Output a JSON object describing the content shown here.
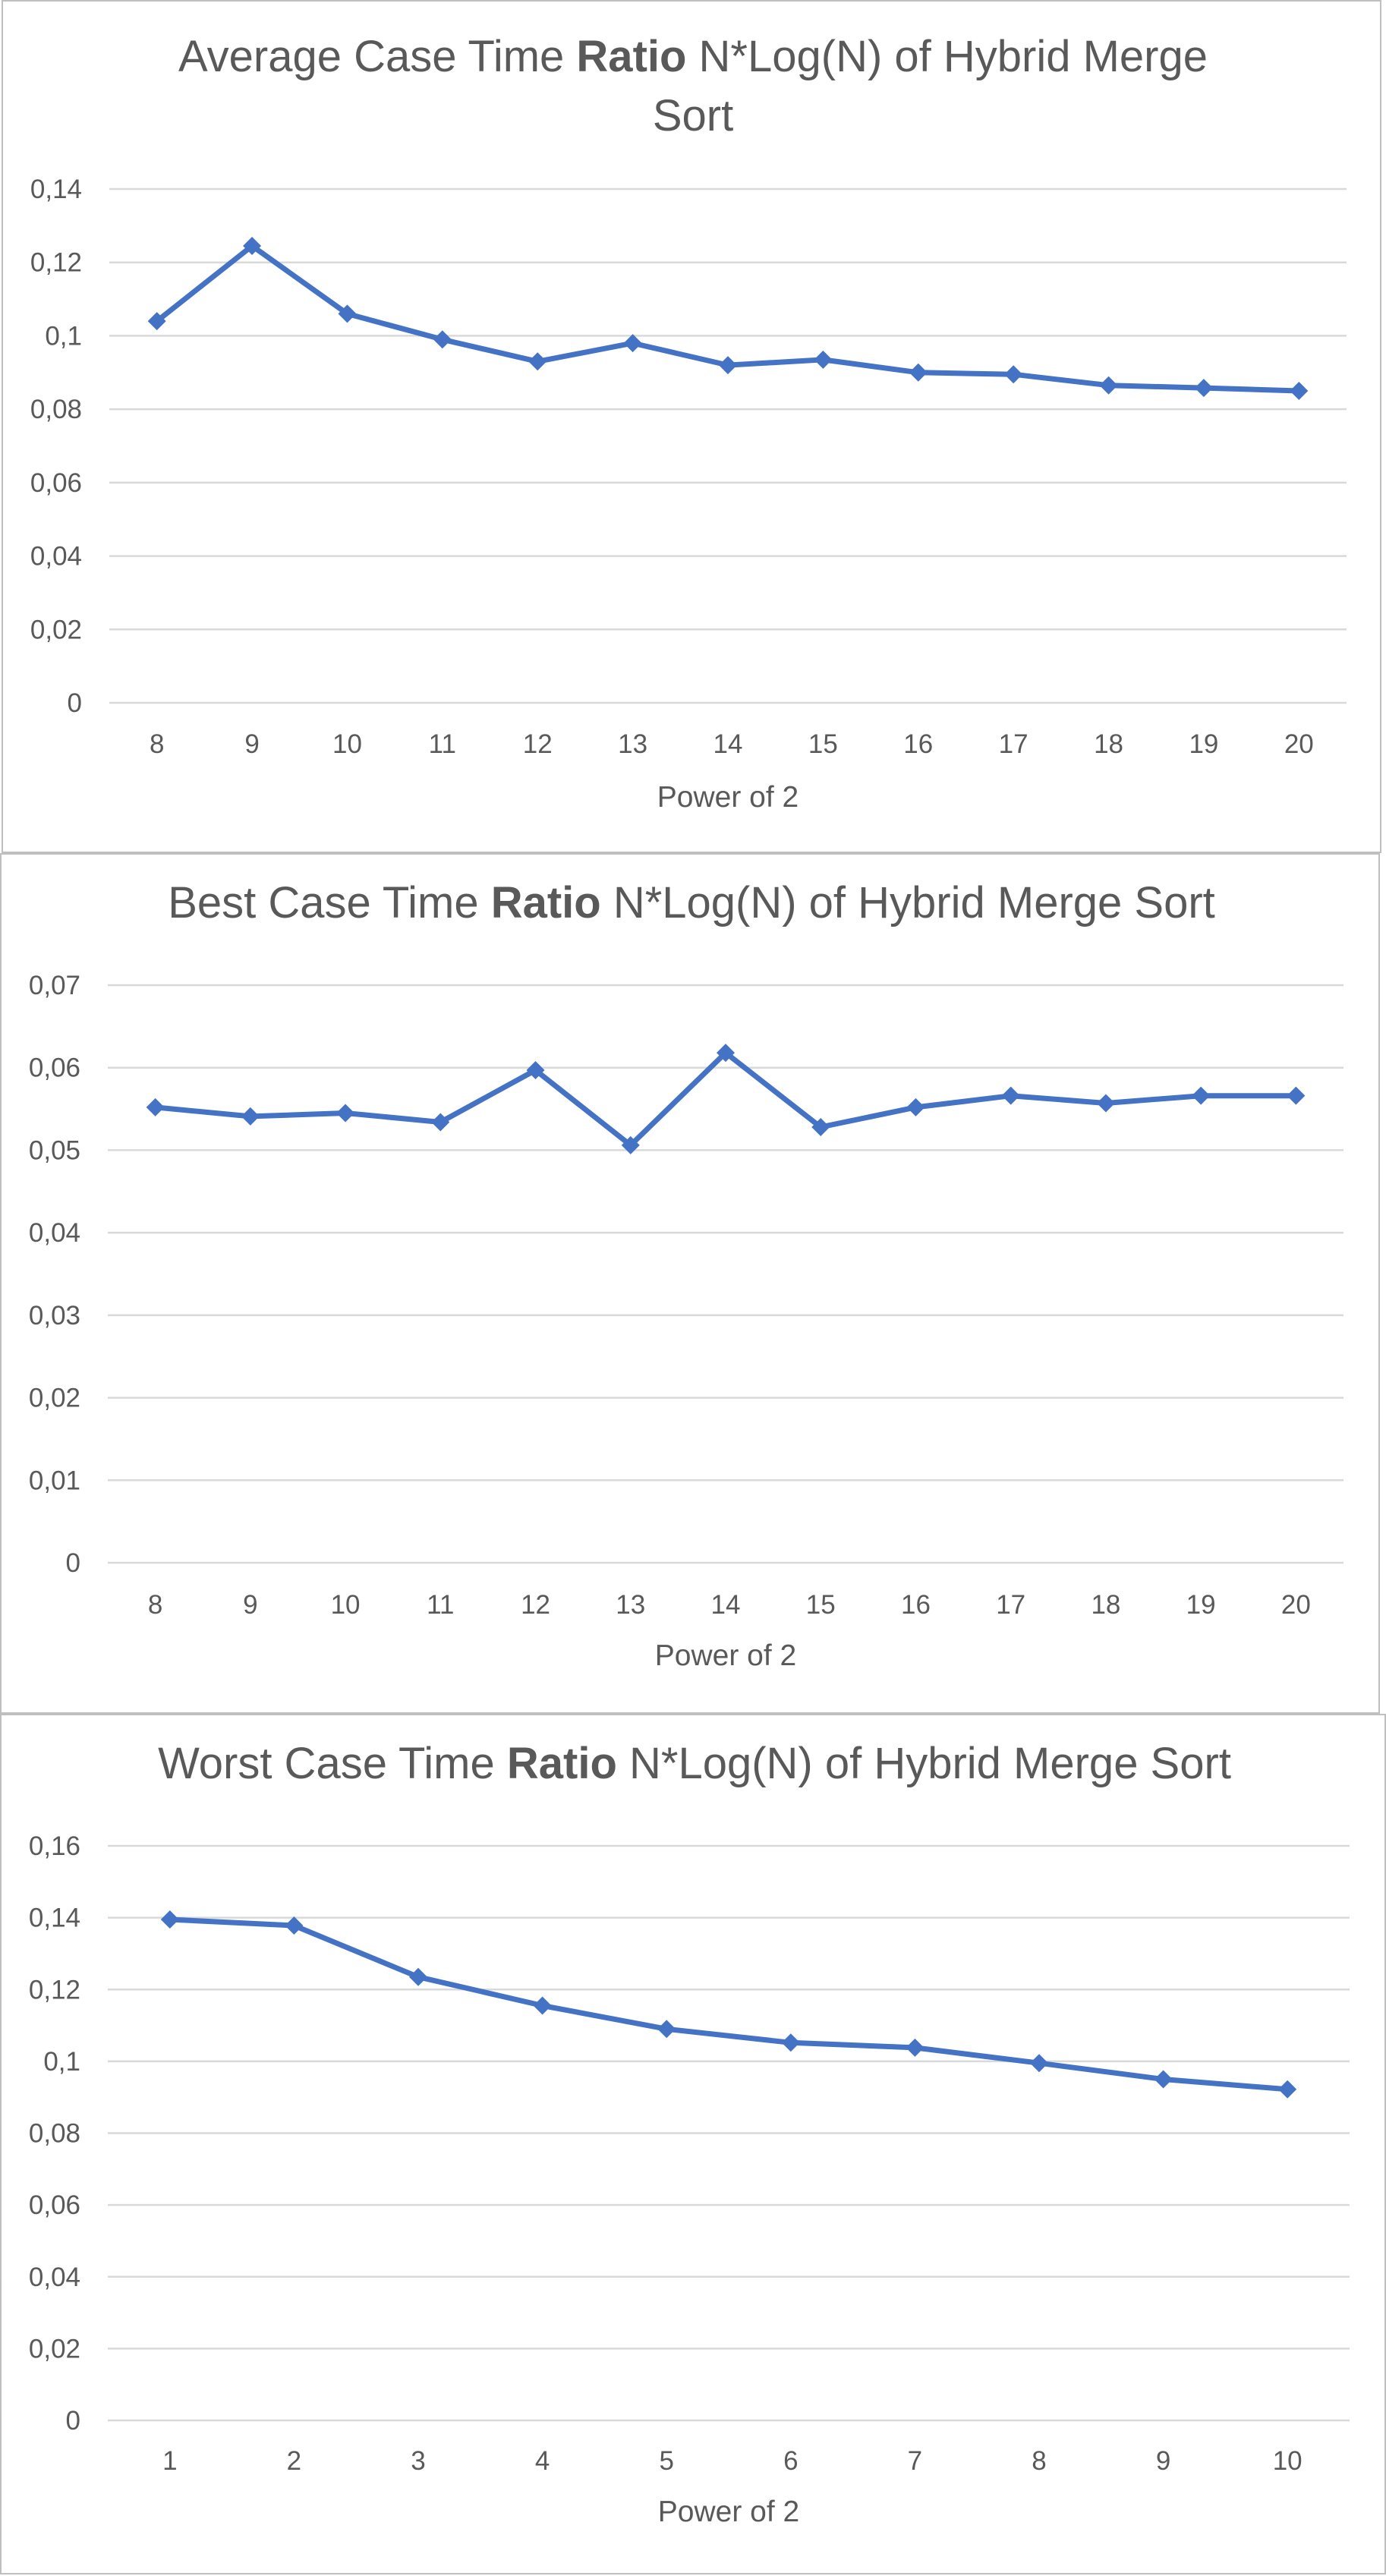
{
  "chart_data": [
    {
      "type": "line",
      "title_parts": [
        {
          "text": "Average Case Time ",
          "bold": false
        },
        {
          "text": "Ratio",
          "bold": true
        },
        {
          "text": " N*Log(N) of Hybrid Merge",
          "bold": false
        }
      ],
      "title_line2": "Sort",
      "x": [
        "8",
        "9",
        "10",
        "11",
        "12",
        "13",
        "14",
        "15",
        "16",
        "17",
        "18",
        "19",
        "20"
      ],
      "ytick_labels": [
        "0",
        "0,02",
        "0,04",
        "0,06",
        "0,08",
        "0,1",
        "0,12",
        "0,14"
      ],
      "ylim": [
        0,
        0.14
      ],
      "grid": true,
      "xlabel": "Power of 2",
      "ylabel": "",
      "marker": "diamond",
      "series": [
        {
          "color": "#4472C4",
          "values": [
            0.104,
            0.1245,
            0.106,
            0.099,
            0.093,
            0.098,
            0.092,
            0.0935,
            0.09,
            0.0895,
            0.0865,
            0.0858,
            0.085
          ]
        }
      ]
    },
    {
      "type": "line",
      "title_parts": [
        {
          "text": "Best Case Time ",
          "bold": false
        },
        {
          "text": "Ratio",
          "bold": true
        },
        {
          "text": " N*Log(N) of  Hybrid Merge Sort",
          "bold": false
        }
      ],
      "x": [
        "8",
        "9",
        "10",
        "11",
        "12",
        "13",
        "14",
        "15",
        "16",
        "17",
        "18",
        "19",
        "20"
      ],
      "ytick_labels": [
        "0",
        "0,01",
        "0,02",
        "0,03",
        "0,04",
        "0,05",
        "0,06",
        "0,07"
      ],
      "ylim": [
        0,
        0.07
      ],
      "grid": true,
      "xlabel": "Power of 2",
      "ylabel": "",
      "marker": "diamond",
      "series": [
        {
          "color": "#4472C4",
          "values": [
            0.0552,
            0.0541,
            0.0545,
            0.0534,
            0.0597,
            0.0506,
            0.0618,
            0.0528,
            0.0552,
            0.0566,
            0.0557,
            0.0566,
            0.0566
          ]
        }
      ]
    },
    {
      "type": "line",
      "title_parts": [
        {
          "text": "Worst Case Time ",
          "bold": false
        },
        {
          "text": "Ratio",
          "bold": true
        },
        {
          "text": " N*Log(N) of Hybrid Merge Sort",
          "bold": false
        }
      ],
      "x": [
        "1",
        "2",
        "3",
        "4",
        "5",
        "6",
        "7",
        "8",
        "9",
        "10"
      ],
      "ytick_labels": [
        "0",
        "0,02",
        "0,04",
        "0,06",
        "0,08",
        "0,1",
        "0,12",
        "0,14",
        "0,16"
      ],
      "ylim": [
        0,
        0.16
      ],
      "grid": true,
      "xlabel": "Power of 2",
      "ylabel": "",
      "marker": "diamond",
      "series": [
        {
          "color": "#4472C4",
          "values": [
            0.1395,
            0.1378,
            0.1235,
            0.1155,
            0.109,
            0.1052,
            0.1038,
            0.0995,
            0.095,
            0.0922
          ]
        }
      ]
    }
  ]
}
